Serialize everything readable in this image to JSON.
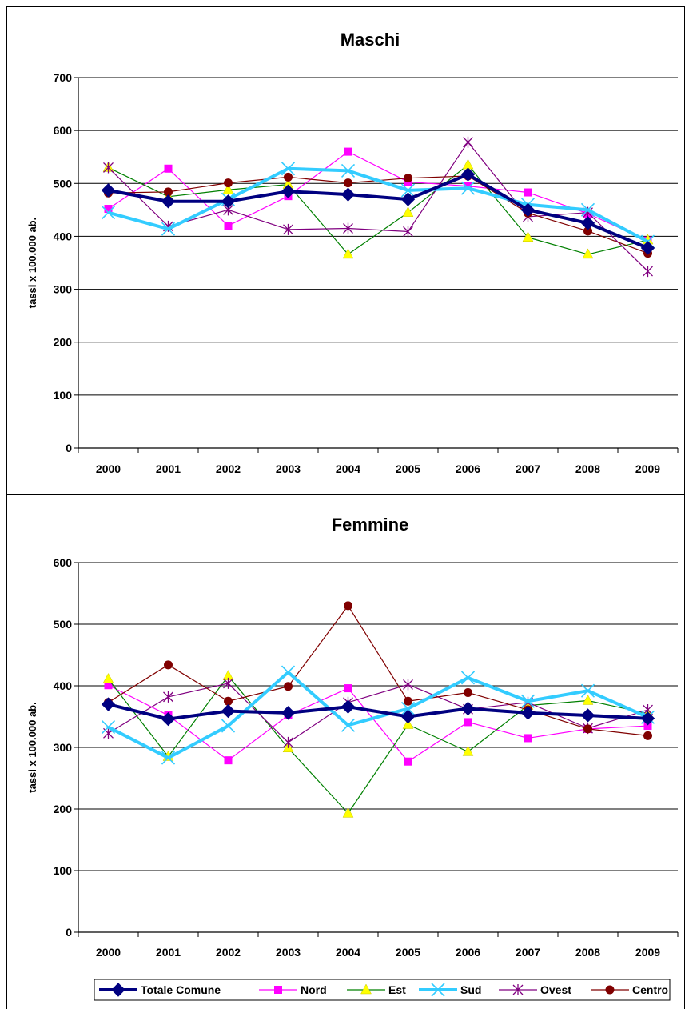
{
  "colors": {
    "Totale Comune": "#000080",
    "Nord": "#ff00ff",
    "Est": "#008000",
    "Sud": "#33ccff",
    "Ovest": "#800080",
    "Centro": "#800000",
    "Est_marker": "#ffff00",
    "Sud_marker": "#33ccff",
    "grid": "#000000"
  },
  "legend": {
    "items": [
      "Totale Comune",
      "Nord",
      "Est",
      "Sud",
      "Ovest",
      "Centro"
    ]
  },
  "chart_data": [
    {
      "type": "line",
      "title": "Maschi",
      "xlabel": "",
      "ylabel": "tassi x 100.000 ab.",
      "categories": [
        "2000",
        "2001",
        "2002",
        "2003",
        "2004",
        "2005",
        "2006",
        "2007",
        "2008",
        "2009"
      ],
      "ylim": [
        0,
        700
      ],
      "yticks": [
        0,
        100,
        200,
        300,
        400,
        500,
        600,
        700
      ],
      "grid": true,
      "series": [
        {
          "name": "Totale Comune",
          "values": [
            487,
            466,
            466,
            485,
            479,
            470,
            517,
            450,
            425,
            378
          ]
        },
        {
          "name": "Nord",
          "values": [
            452,
            528,
            420,
            476,
            560,
            503,
            495,
            483,
            443,
            392
          ]
        },
        {
          "name": "Est",
          "values": [
            530,
            475,
            488,
            498,
            366,
            445,
            535,
            398,
            366,
            393
          ]
        },
        {
          "name": "Sud",
          "values": [
            445,
            414,
            470,
            528,
            524,
            487,
            491,
            460,
            450,
            390
          ]
        },
        {
          "name": "Ovest",
          "values": [
            530,
            419,
            450,
            413,
            415,
            409,
            578,
            437,
            445,
            334
          ]
        },
        {
          "name": "Centro",
          "values": [
            482,
            484,
            501,
            512,
            501,
            510,
            514,
            444,
            410,
            368
          ]
        }
      ]
    },
    {
      "type": "line",
      "title": "Femmine",
      "xlabel": "",
      "ylabel": "tassi x 100.000 ab.",
      "categories": [
        "2000",
        "2001",
        "2002",
        "2003",
        "2004",
        "2005",
        "2006",
        "2007",
        "2008",
        "2009"
      ],
      "ylim": [
        0,
        600
      ],
      "yticks": [
        0,
        100,
        200,
        300,
        400,
        500,
        600
      ],
      "grid": true,
      "series": [
        {
          "name": "Totale Comune",
          "values": [
            370,
            346,
            359,
            356,
            366,
            350,
            363,
            356,
            352,
            347
          ]
        },
        {
          "name": "Nord",
          "values": [
            401,
            352,
            279,
            352,
            396,
            277,
            341,
            315,
            330,
            335
          ]
        },
        {
          "name": "Est",
          "values": [
            411,
            285,
            416,
            299,
            193,
            337,
            293,
            368,
            376,
            355
          ]
        },
        {
          "name": "Sud",
          "values": [
            333,
            283,
            335,
            422,
            336,
            363,
            413,
            375,
            392,
            349
          ]
        },
        {
          "name": "Ovest",
          "values": [
            323,
            382,
            404,
            308,
            373,
            402,
            362,
            373,
            331,
            361
          ]
        },
        {
          "name": "Centro",
          "values": [
            373,
            434,
            375,
            399,
            530,
            375,
            389,
            361,
            330,
            319
          ]
        }
      ]
    }
  ]
}
